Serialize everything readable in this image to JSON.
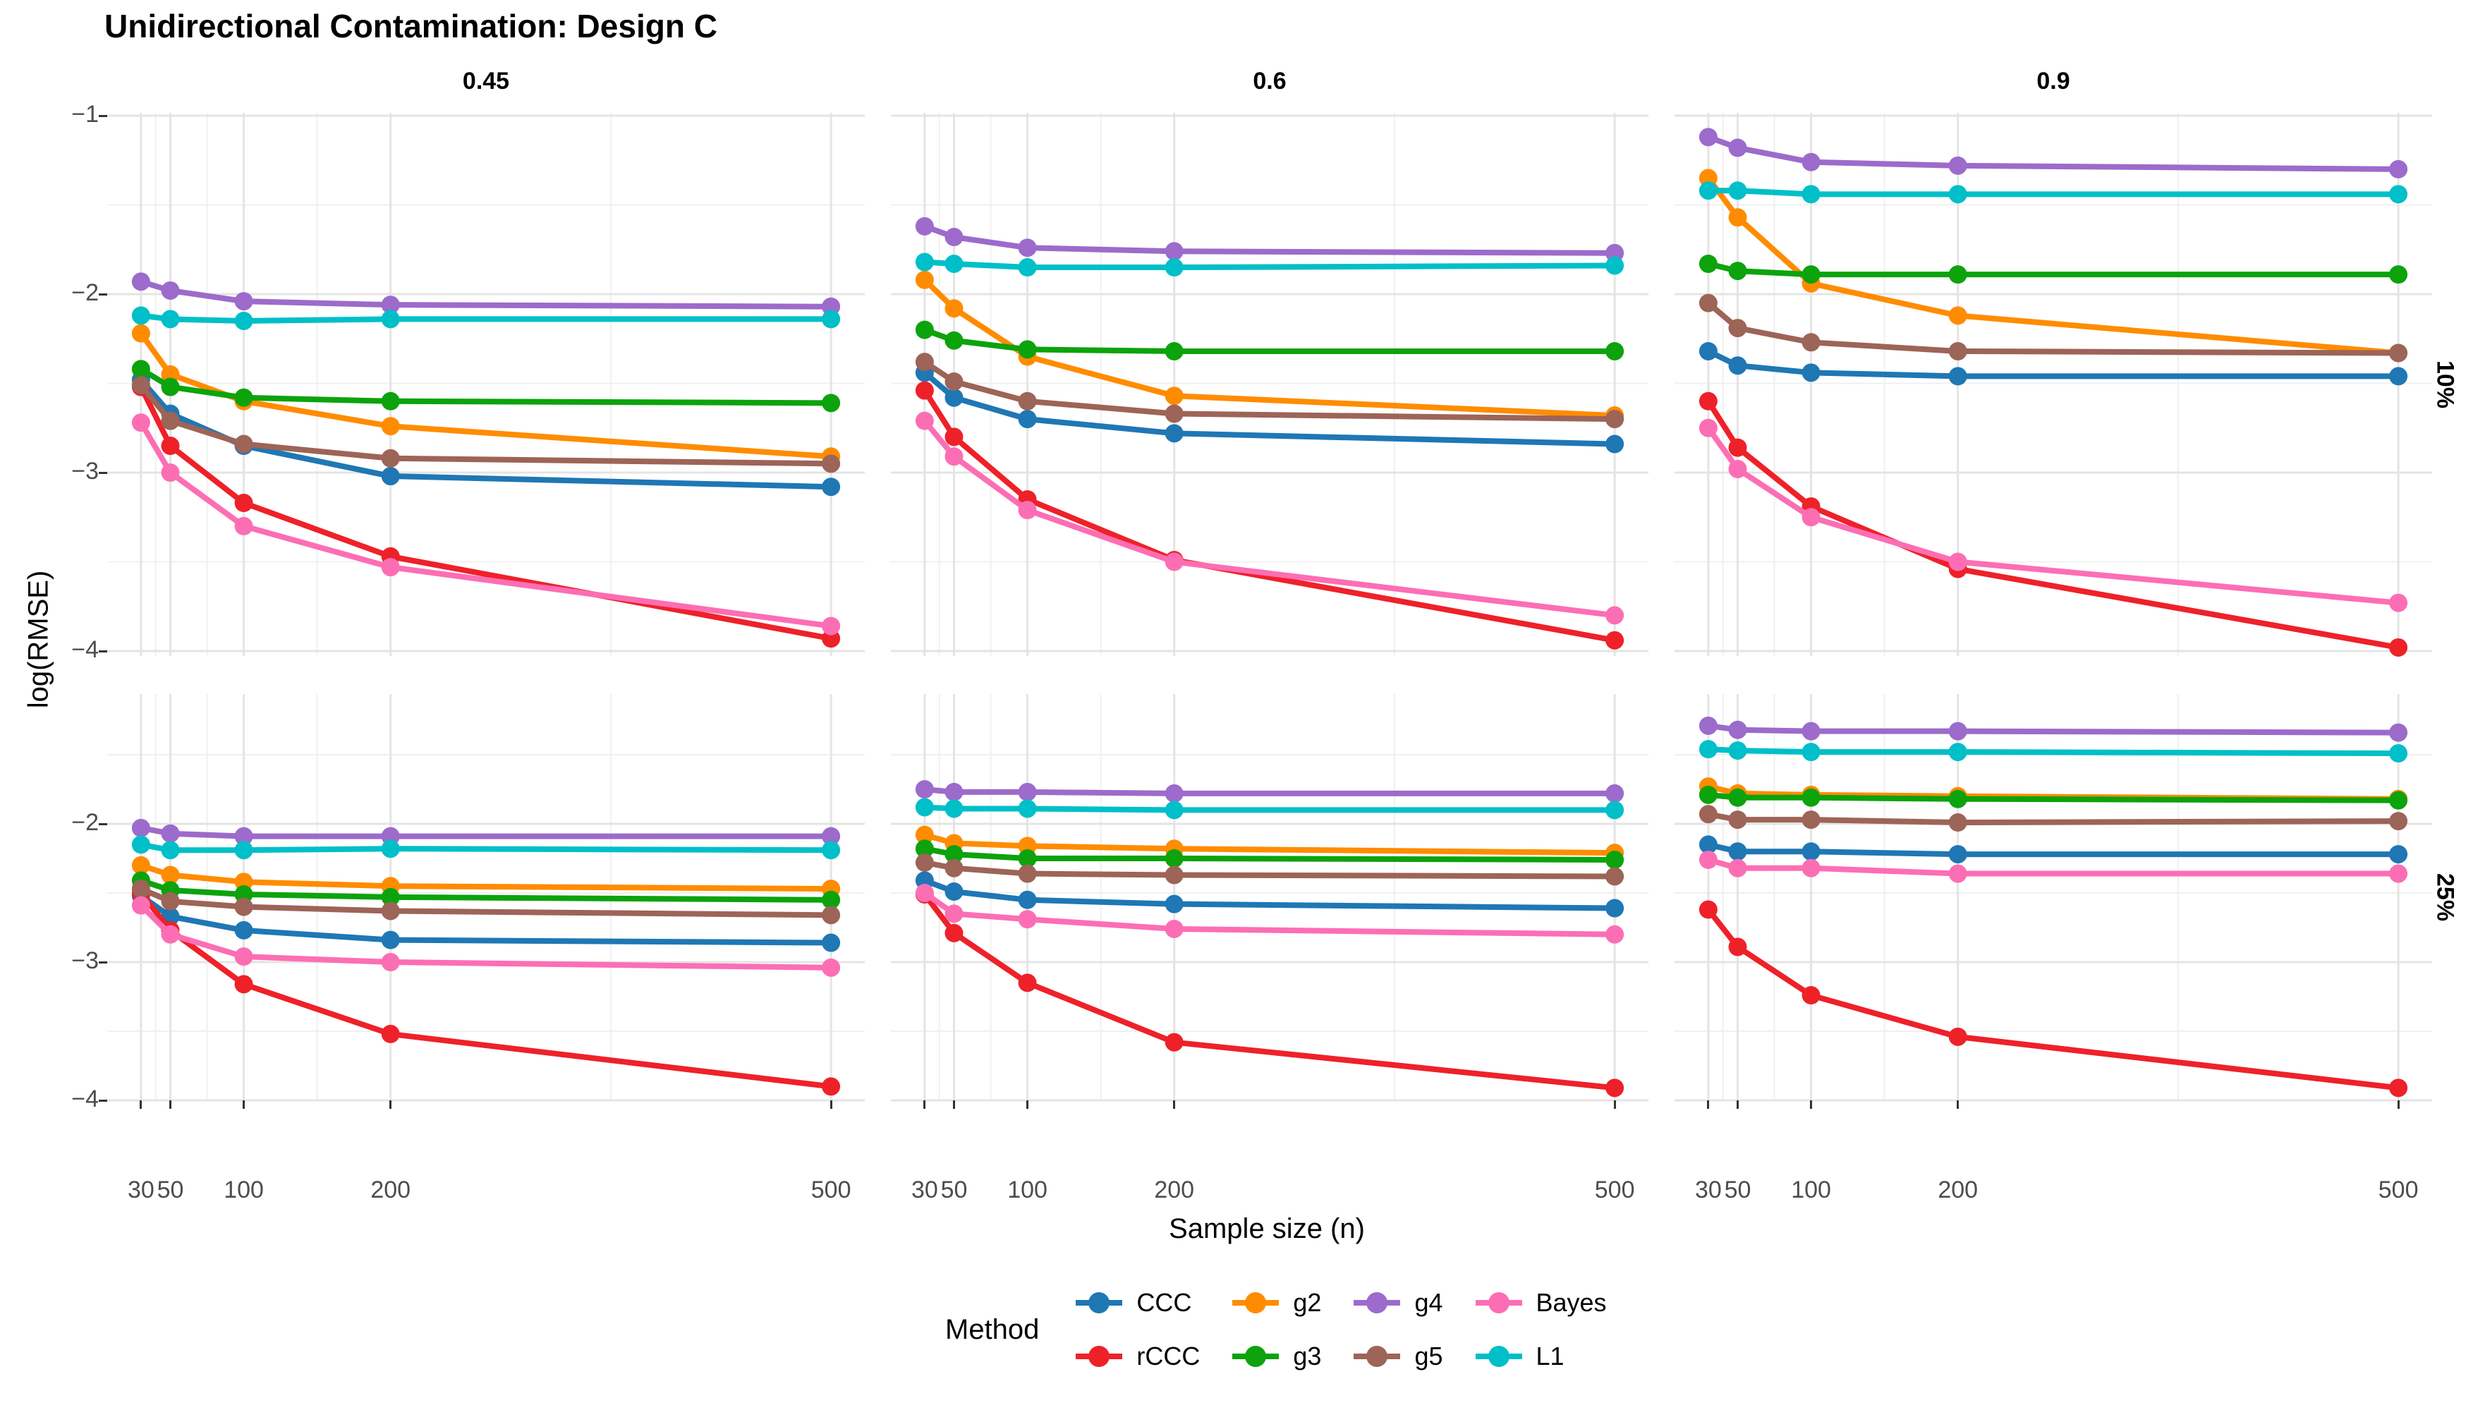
{
  "title": "Unidirectional Contamination: Design C",
  "axes": {
    "x": {
      "title": "Sample size (n)",
      "tick_values": [
        30,
        50,
        100,
        200,
        500
      ],
      "tick_labels": [
        "30",
        "50",
        "100",
        "200",
        "500"
      ]
    },
    "y": {
      "title": "log(RMSE)",
      "row_tick_values": [
        [
          -1,
          -2,
          -3,
          -4
        ],
        [
          -2,
          -3,
          -4
        ]
      ],
      "row_tick_labels": [
        [
          "−1",
          "−2",
          "−3",
          "−4"
        ],
        [
          "−2",
          "−3",
          "−4"
        ]
      ]
    }
  },
  "facets": {
    "cols": [
      "0.45",
      "0.6",
      "0.9"
    ],
    "rows": [
      "10%",
      "25%"
    ]
  },
  "legend": {
    "title": "Method",
    "items": [
      {
        "label": "CCC",
        "color": "#1F77B4"
      },
      {
        "label": "rCCC",
        "color": "#EE2129"
      },
      {
        "label": "g2",
        "color": "#FF8C00"
      },
      {
        "label": "g3",
        "color": "#0CA30C"
      },
      {
        "label": "g4",
        "color": "#9C6BCB"
      },
      {
        "label": "g5",
        "color": "#9D6458"
      },
      {
        "label": "Bayes",
        "color": "#FC6EB4"
      },
      {
        "label": "L1",
        "color": "#00BFC8"
      }
    ]
  },
  "chart_data": {
    "type": "line",
    "title": "Unidirectional Contamination: Design C",
    "xlabel": "Sample size (n)",
    "ylabel": "log(RMSE)",
    "x": [
      30,
      50,
      100,
      200,
      500
    ],
    "x_scale": "linear",
    "xlim": [
      7,
      523
    ],
    "row_ylim": {
      "10%": [
        -0.98,
        -4.05
      ],
      "25%": [
        -1.06,
        -4.0
      ]
    },
    "grid": {
      "x_major": [
        30,
        50,
        100,
        200,
        500
      ],
      "x_minor": [
        40,
        75,
        150,
        350
      ],
      "y_minor": [
        -1.5,
        -2.5,
        -3.5
      ]
    },
    "legend_position": "bottom",
    "series_order": [
      "CCC",
      "rCCC",
      "g2",
      "g3",
      "g4",
      "g5",
      "Bayes",
      "L1"
    ],
    "panels": [
      {
        "facet_col": "0.45",
        "facet_row": "10%",
        "series": [
          {
            "name": "CCC",
            "values": [
              -2.48,
              -2.67,
              -2.85,
              -3.02,
              -3.08
            ]
          },
          {
            "name": "rCCC",
            "values": [
              -2.52,
              -2.85,
              -3.17,
              -3.47,
              -3.93
            ]
          },
          {
            "name": "g2",
            "values": [
              -2.22,
              -2.45,
              -2.6,
              -2.74,
              -2.91
            ]
          },
          {
            "name": "g3",
            "values": [
              -2.42,
              -2.52,
              -2.58,
              -2.6,
              -2.61
            ]
          },
          {
            "name": "g4",
            "values": [
              -1.93,
              -1.98,
              -2.04,
              -2.06,
              -2.07
            ]
          },
          {
            "name": "g5",
            "values": [
              -2.51,
              -2.71,
              -2.84,
              -2.92,
              -2.95
            ]
          },
          {
            "name": "Bayes",
            "values": [
              -2.72,
              -3.0,
              -3.3,
              -3.53,
              -3.86
            ]
          },
          {
            "name": "L1",
            "values": [
              -2.12,
              -2.14,
              -2.15,
              -2.14,
              -2.14
            ]
          }
        ]
      },
      {
        "facet_col": "0.6",
        "facet_row": "10%",
        "series": [
          {
            "name": "CCC",
            "values": [
              -2.44,
              -2.58,
              -2.7,
              -2.78,
              -2.84
            ]
          },
          {
            "name": "rCCC",
            "values": [
              -2.54,
              -2.8,
              -3.15,
              -3.49,
              -3.94
            ]
          },
          {
            "name": "g2",
            "values": [
              -1.92,
              -2.08,
              -2.35,
              -2.57,
              -2.68
            ]
          },
          {
            "name": "g3",
            "values": [
              -2.2,
              -2.26,
              -2.31,
              -2.32,
              -2.32
            ]
          },
          {
            "name": "g4",
            "values": [
              -1.62,
              -1.68,
              -1.74,
              -1.76,
              -1.77
            ]
          },
          {
            "name": "g5",
            "values": [
              -2.38,
              -2.49,
              -2.6,
              -2.67,
              -2.7
            ]
          },
          {
            "name": "Bayes",
            "values": [
              -2.71,
              -2.91,
              -3.21,
              -3.5,
              -3.8
            ]
          },
          {
            "name": "L1",
            "values": [
              -1.82,
              -1.83,
              -1.85,
              -1.85,
              -1.84
            ]
          }
        ]
      },
      {
        "facet_col": "0.9",
        "facet_row": "10%",
        "series": [
          {
            "name": "CCC",
            "values": [
              -2.32,
              -2.4,
              -2.44,
              -2.46,
              -2.46
            ]
          },
          {
            "name": "rCCC",
            "values": [
              -2.6,
              -2.86,
              -3.19,
              -3.54,
              -3.98
            ]
          },
          {
            "name": "g2",
            "values": [
              -1.35,
              -1.57,
              -1.94,
              -2.12,
              -2.33
            ]
          },
          {
            "name": "g3",
            "values": [
              -1.83,
              -1.87,
              -1.89,
              -1.89,
              -1.89
            ]
          },
          {
            "name": "g4",
            "values": [
              -1.12,
              -1.18,
              -1.26,
              -1.28,
              -1.3
            ]
          },
          {
            "name": "g5",
            "values": [
              -2.05,
              -2.19,
              -2.27,
              -2.32,
              -2.33
            ]
          },
          {
            "name": "Bayes",
            "values": [
              -2.75,
              -2.98,
              -3.25,
              -3.5,
              -3.73
            ]
          },
          {
            "name": "L1",
            "values": [
              -1.42,
              -1.42,
              -1.44,
              -1.44,
              -1.44
            ]
          }
        ]
      },
      {
        "facet_col": "0.45",
        "facet_row": "25%",
        "series": [
          {
            "name": "CCC",
            "values": [
              -2.52,
              -2.67,
              -2.77,
              -2.84,
              -2.86
            ]
          },
          {
            "name": "rCCC",
            "values": [
              -2.5,
              -2.77,
              -3.16,
              -3.52,
              -3.9
            ]
          },
          {
            "name": "g2",
            "values": [
              -2.3,
              -2.37,
              -2.42,
              -2.45,
              -2.47
            ]
          },
          {
            "name": "g3",
            "values": [
              -2.41,
              -2.48,
              -2.51,
              -2.53,
              -2.55
            ]
          },
          {
            "name": "g4",
            "values": [
              -2.03,
              -2.07,
              -2.09,
              -2.09,
              -2.09
            ]
          },
          {
            "name": "g5",
            "values": [
              -2.47,
              -2.56,
              -2.6,
              -2.63,
              -2.66
            ]
          },
          {
            "name": "Bayes",
            "values": [
              -2.59,
              -2.8,
              -2.96,
              -3.0,
              -3.04
            ]
          },
          {
            "name": "L1",
            "values": [
              -2.15,
              -2.19,
              -2.19,
              -2.18,
              -2.19
            ]
          }
        ]
      },
      {
        "facet_col": "0.6",
        "facet_row": "25%",
        "series": [
          {
            "name": "CCC",
            "values": [
              -2.41,
              -2.49,
              -2.55,
              -2.58,
              -2.61
            ]
          },
          {
            "name": "rCCC",
            "values": [
              -2.51,
              -2.79,
              -3.15,
              -3.58,
              -3.91
            ]
          },
          {
            "name": "g2",
            "values": [
              -2.08,
              -2.14,
              -2.16,
              -2.18,
              -2.21
            ]
          },
          {
            "name": "g3",
            "values": [
              -2.18,
              -2.22,
              -2.25,
              -2.25,
              -2.26
            ]
          },
          {
            "name": "g4",
            "values": [
              -1.75,
              -1.77,
              -1.77,
              -1.78,
              -1.78
            ]
          },
          {
            "name": "g5",
            "values": [
              -2.28,
              -2.32,
              -2.36,
              -2.37,
              -2.38
            ]
          },
          {
            "name": "Bayes",
            "values": [
              -2.5,
              -2.65,
              -2.69,
              -2.76,
              -2.8
            ]
          },
          {
            "name": "L1",
            "values": [
              -1.88,
              -1.89,
              -1.89,
              -1.9,
              -1.9
            ]
          }
        ]
      },
      {
        "facet_col": "0.9",
        "facet_row": "25%",
        "series": [
          {
            "name": "CCC",
            "values": [
              -2.15,
              -2.2,
              -2.2,
              -2.22,
              -2.22
            ]
          },
          {
            "name": "rCCC",
            "values": [
              -2.62,
              -2.89,
              -3.24,
              -3.54,
              -3.91
            ]
          },
          {
            "name": "g2",
            "values": [
              -1.73,
              -1.78,
              -1.79,
              -1.8,
              -1.82
            ]
          },
          {
            "name": "g3",
            "values": [
              -1.79,
              -1.81,
              -1.81,
              -1.82,
              -1.83
            ]
          },
          {
            "name": "g4",
            "values": [
              -1.29,
              -1.32,
              -1.33,
              -1.33,
              -1.34
            ]
          },
          {
            "name": "g5",
            "values": [
              -1.93,
              -1.97,
              -1.97,
              -1.99,
              -1.98
            ]
          },
          {
            "name": "Bayes",
            "values": [
              -2.26,
              -2.32,
              -2.32,
              -2.36,
              -2.36
            ]
          },
          {
            "name": "L1",
            "values": [
              -1.46,
              -1.47,
              -1.48,
              -1.48,
              -1.49
            ]
          }
        ]
      }
    ]
  }
}
